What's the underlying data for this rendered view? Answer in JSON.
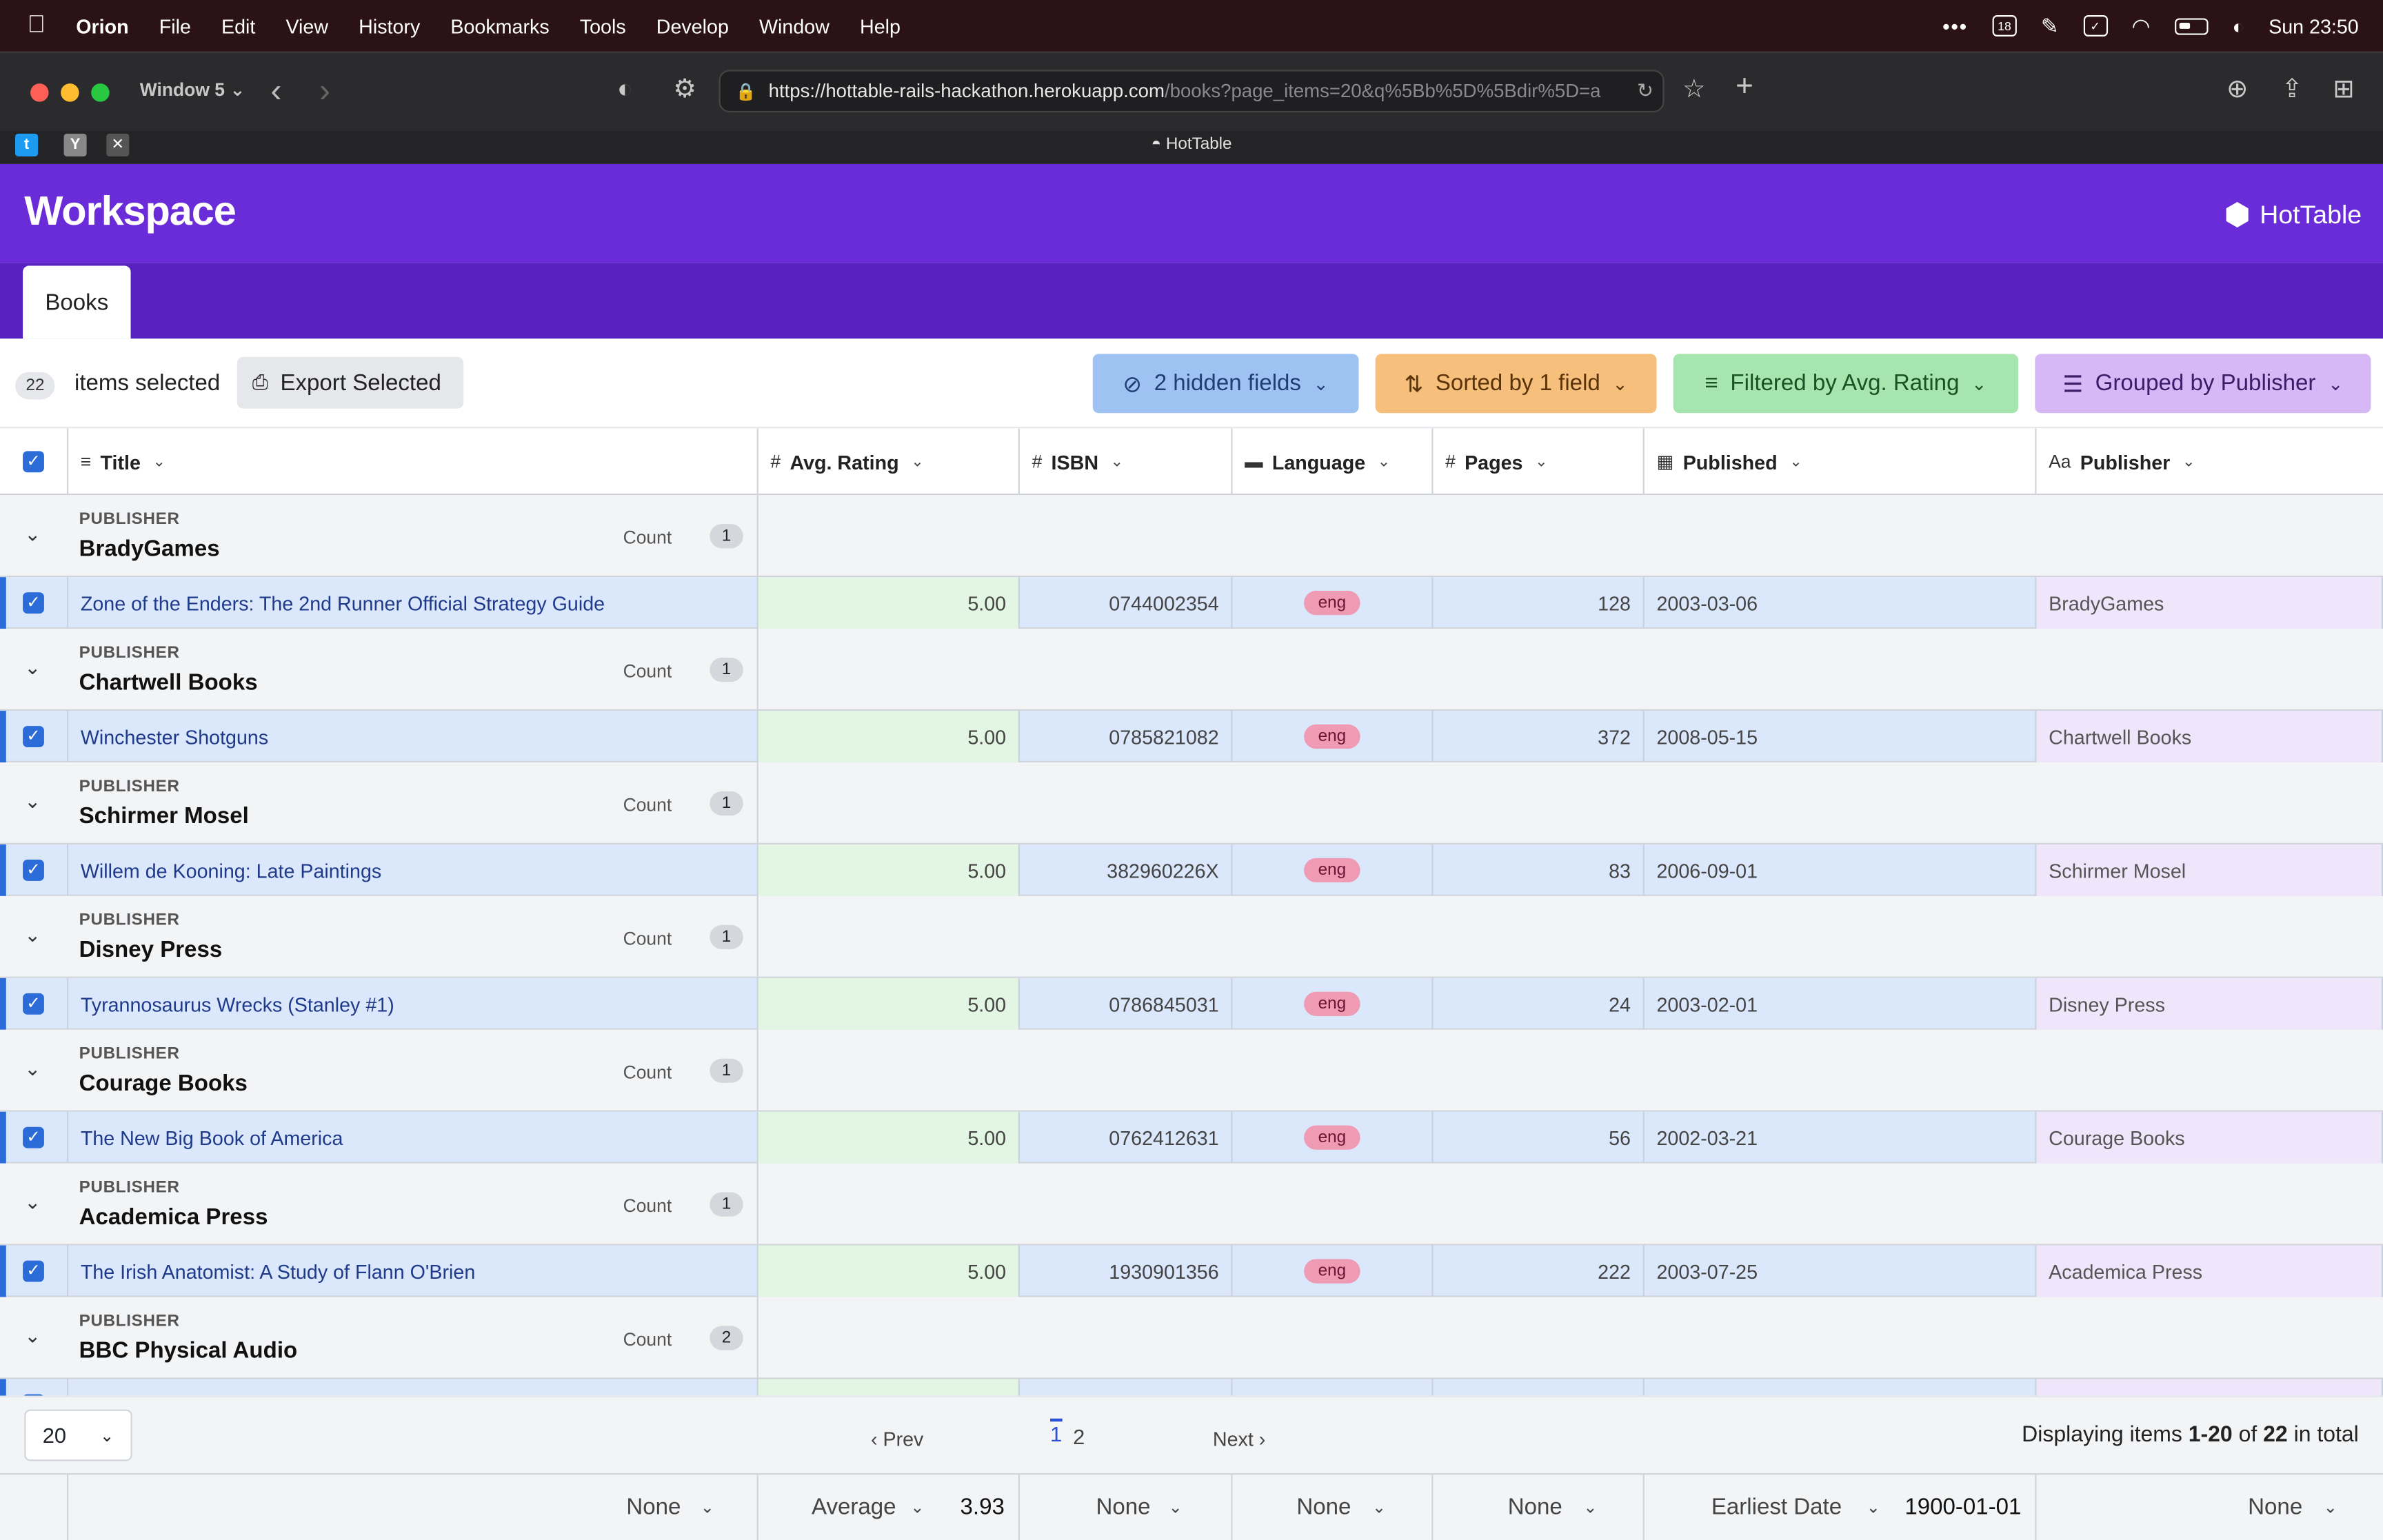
{
  "menubar": {
    "app_name": "Orion",
    "items": [
      "File",
      "Edit",
      "View",
      "History",
      "Bookmarks",
      "Tools",
      "Develop",
      "Window",
      "Help"
    ],
    "calendar_day": "18",
    "clock": "Sun  23:50"
  },
  "browser": {
    "window_name": "Window 5",
    "url_host": "https://hottable-rails-hackathon.herokuapp.com",
    "url_path": "/books?page_items=20&q%5Bb%5D%5Bdir%5D=a",
    "tab_title": "HotTable",
    "favicons": [
      "twitter-favicon",
      "y-favicon",
      "x-favicon"
    ]
  },
  "app": {
    "title": "Workspace",
    "brand": "HotTable",
    "tabs": [
      "Books"
    ]
  },
  "toolbar": {
    "selected_count": "22",
    "selected_label": "items selected",
    "export_label": "Export Selected",
    "hidden_fields": "2 hidden fields",
    "sorted": "Sorted by 1 field",
    "filtered": "Filtered by Avg. Rating",
    "grouped": "Grouped by Publisher"
  },
  "colors": {
    "header_purple": "#6a2bd9",
    "nav_purple": "#5822c0",
    "hidden_pill": "#9ec3f2",
    "sorted_pill": "#f6c07c",
    "filtered_pill": "#a6e6ae",
    "grouped_pill": "#d6b8f6",
    "checkbox_blue": "#2b6cd9"
  },
  "columns": [
    {
      "icon": "≡",
      "label": "Title"
    },
    {
      "icon": "#",
      "label": "Avg. Rating"
    },
    {
      "icon": "#",
      "label": "ISBN"
    },
    {
      "icon": "▬",
      "label": "Language"
    },
    {
      "icon": "#",
      "label": "Pages"
    },
    {
      "icon": "▦",
      "label": "Published"
    },
    {
      "icon": "Aa",
      "label": "Publisher"
    }
  ],
  "group_label": "PUBLISHER",
  "count_label": "Count",
  "groups": [
    {
      "publisher": "BradyGames",
      "count": "1",
      "rows": [
        {
          "title": "Zone of the Enders: The 2nd Runner Official Strategy Guide",
          "rating": "5.00",
          "isbn": "0744002354",
          "language": "eng",
          "pages": "128",
          "published": "2003-03-06",
          "publisher": "BradyGames"
        }
      ]
    },
    {
      "publisher": "Chartwell Books",
      "count": "1",
      "rows": [
        {
          "title": "Winchester Shotguns",
          "rating": "5.00",
          "isbn": "0785821082",
          "language": "eng",
          "pages": "372",
          "published": "2008-05-15",
          "publisher": "Chartwell Books"
        }
      ]
    },
    {
      "publisher": "Schirmer Mosel",
      "count": "1",
      "rows": [
        {
          "title": "Willem de Kooning: Late Paintings",
          "rating": "5.00",
          "isbn": "382960226X",
          "language": "eng",
          "pages": "83",
          "published": "2006-09-01",
          "publisher": "Schirmer Mosel"
        }
      ]
    },
    {
      "publisher": "Disney Press",
      "count": "1",
      "rows": [
        {
          "title": "Tyrannosaurus Wrecks (Stanley #1)",
          "rating": "5.00",
          "isbn": "0786845031",
          "language": "eng",
          "pages": "24",
          "published": "2003-02-01",
          "publisher": "Disney Press"
        }
      ]
    },
    {
      "publisher": "Courage Books",
      "count": "1",
      "rows": [
        {
          "title": "The New Big Book of America",
          "rating": "5.00",
          "isbn": "0762412631",
          "language": "eng",
          "pages": "56",
          "published": "2002-03-21",
          "publisher": "Courage Books"
        }
      ]
    },
    {
      "publisher": "Academica Press",
      "count": "1",
      "rows": [
        {
          "title": "The Irish Anatomist: A Study of Flann O'Brien",
          "rating": "5.00",
          "isbn": "1930901356",
          "language": "eng",
          "pages": "222",
          "published": "2003-07-25",
          "publisher": "Academica Press"
        }
      ]
    },
    {
      "publisher": "BBC Physical Audio",
      "count": "2",
      "rows": [
        {
          "title": "",
          "rating": "",
          "isbn": "",
          "language": "",
          "pages": "",
          "published": "",
          "publisher": ""
        }
      ]
    }
  ],
  "pagination": {
    "per_page": "20",
    "prev": "‹ Prev",
    "pages": [
      "1",
      "2"
    ],
    "current": "1",
    "next": "Next ›",
    "info_prefix": "Displaying items ",
    "info_range": "1-20",
    "info_of": " of ",
    "info_total": "22",
    "info_suffix": " in total"
  },
  "summary": [
    {
      "agg": "None",
      "value": ""
    },
    {
      "agg": "Average",
      "value": "3.93"
    },
    {
      "agg": "None",
      "value": ""
    },
    {
      "agg": "None",
      "value": ""
    },
    {
      "agg": "None",
      "value": ""
    },
    {
      "agg": "Earliest Date",
      "value": "1900-01-01"
    },
    {
      "agg": "None",
      "value": ""
    }
  ]
}
